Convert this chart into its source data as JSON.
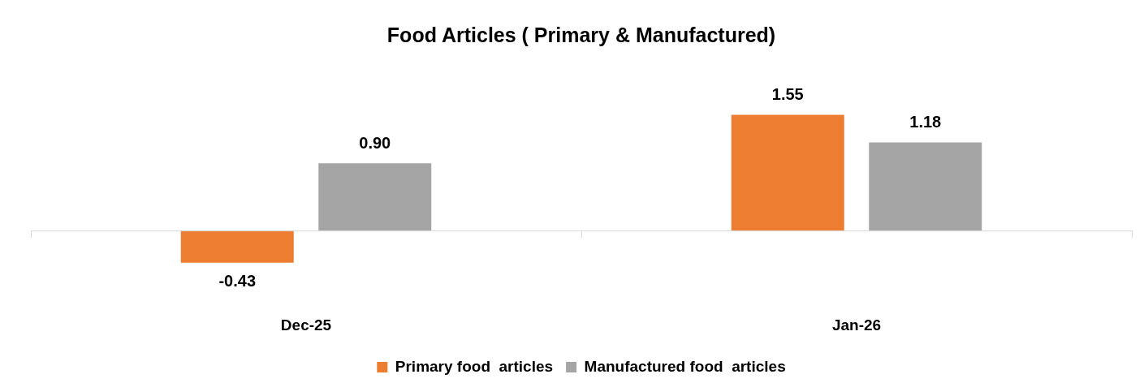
{
  "chart_data": {
    "type": "bar",
    "title": "Food Articles ( Primary & Manufactured)",
    "categories": [
      "Dec-25",
      "Jan-26"
    ],
    "series": [
      {
        "name": "Primary food  articles",
        "color": "#ed7d31",
        "values": [
          -0.43,
          1.55
        ],
        "value_labels": [
          "-0.43",
          "1.55"
        ]
      },
      {
        "name": "Manufactured food  articles",
        "color": "#a5a5a5",
        "values": [
          0.9,
          1.18
        ],
        "value_labels": [
          "0.90",
          "1.18"
        ]
      }
    ],
    "legend": "bottom",
    "grid": false,
    "tick_labels": "x"
  }
}
